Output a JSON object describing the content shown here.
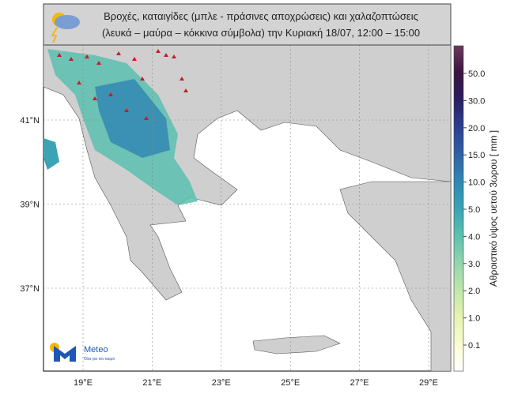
{
  "header": {
    "title_line1": "Βροχές, καταιγίδες (μπλε - πράσινες αποχρώσεις) και χαλαζοπτώσεις",
    "title_line2": "(λευκά – μαύρα – κόκκινα σύμβολα) την Κυριακή 18/07, 12:00 – 15:00"
  },
  "map": {
    "lat_labels": [
      "41°N",
      "39°N",
      "37°N"
    ],
    "lon_labels": [
      "19°E",
      "21°E",
      "23°E",
      "25°E",
      "27°E",
      "29°E"
    ]
  },
  "colorbar": {
    "label": "Αθροιστικό ύψος υετού 3ωρου [ mm ]",
    "ticks": [
      0.1,
      {
        "value": 1,
        "label": "1.0"
      },
      {
        "value": 2,
        "label": "2.0"
      },
      {
        "value": 3,
        "label": "3.0"
      },
      {
        "value": 4,
        "label": "4.0"
      },
      {
        "value": 5,
        "label": "5.0"
      },
      {
        "value": 10,
        "label": "10.0"
      },
      {
        "value": 15,
        "label": "15.0"
      },
      {
        "value": 20,
        "label": "20.0"
      },
      {
        "value": 30,
        "label": "30.0"
      },
      {
        "value": 50,
        "label": "50.0"
      }
    ]
  },
  "logo": {
    "name": "Meteo",
    "tagline": "Όλα για τον καιρό"
  }
}
